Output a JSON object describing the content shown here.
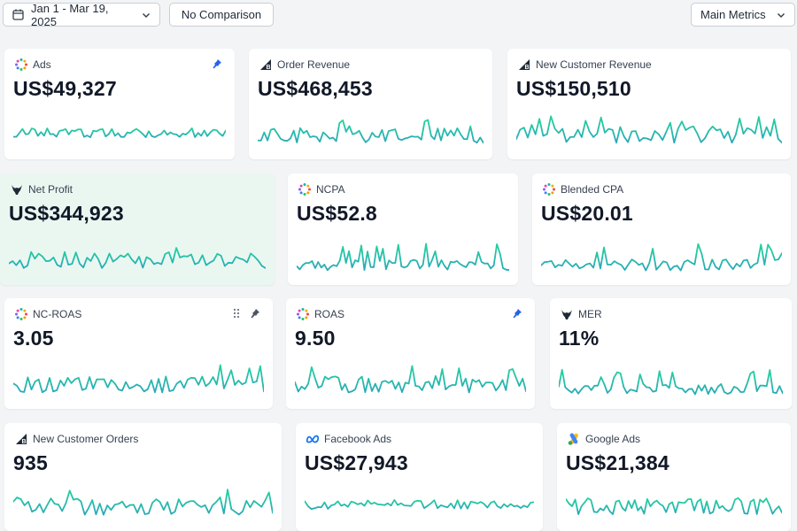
{
  "toolbar": {
    "date_range": "Jan 1 - Mar 19, 2025",
    "comparison": "No Comparison",
    "metrics_set": "Main Metrics"
  },
  "colors": {
    "accent": "#2563eb",
    "spark_start": "#2aa8b8",
    "spark_end": "#22d39b",
    "highlight_bg": "#eaf7f1"
  },
  "cards": [
    {
      "title": "Ads",
      "value": "US$49,327",
      "icon": "ads-dots-icon",
      "pinned": true
    },
    {
      "title": "Order Revenue",
      "value": "US$468,453",
      "icon": "bigcommerce-b-icon"
    },
    {
      "title": "New Customer Revenue",
      "value": "US$150,510",
      "icon": "bigcommerce-b-icon"
    },
    {
      "title": "Net Profit",
      "value": "US$344,923",
      "icon": "triple-whale-icon"
    },
    {
      "title": "NCPA",
      "value": "US$52.8",
      "icon": "ads-dots-icon"
    },
    {
      "title": "Blended CPA",
      "value": "US$20.01",
      "icon": "ads-dots-icon"
    },
    {
      "title": "NC-ROAS",
      "value": "3.05",
      "icon": "ads-dots-icon",
      "pinned": true
    },
    {
      "title": "ROAS",
      "value": "9.50",
      "icon": "ads-dots-icon",
      "pinned": true
    },
    {
      "title": "MER",
      "value": "11%",
      "icon": "triple-whale-icon"
    },
    {
      "title": "New Customer Orders",
      "value": "935",
      "icon": "bigcommerce-b-icon"
    },
    {
      "title": "Facebook Ads",
      "value": "US$27,943",
      "icon": "meta-icon"
    },
    {
      "title": "Google Ads",
      "value": "US$21,384",
      "icon": "google-ads-icon"
    }
  ]
}
